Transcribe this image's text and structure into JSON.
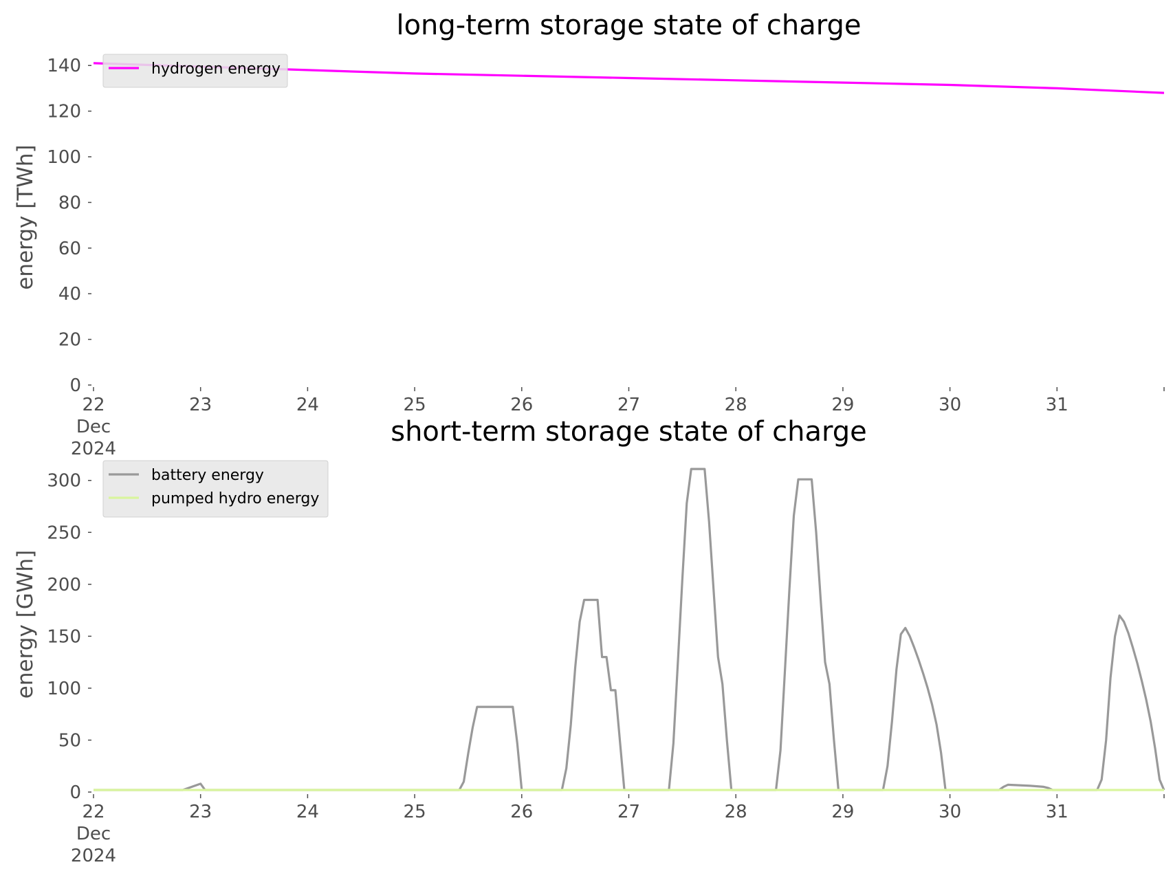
{
  "chart_data": [
    {
      "type": "line",
      "title": "long-term storage state of charge",
      "ylabel": "energy [TWh]",
      "xlabel": "",
      "x_ticks": [
        "22\nDec\n2024",
        "23",
        "24",
        "25",
        "26",
        "27",
        "28",
        "29",
        "30",
        "31"
      ],
      "xlim": [
        "2024-12-22",
        "2025-01-01"
      ],
      "ylim": [
        0,
        147
      ],
      "y_ticks": [
        0,
        20,
        40,
        60,
        80,
        100,
        120,
        140
      ],
      "grid": false,
      "legend_position": "top-left",
      "series": [
        {
          "name": "hydrogen energy",
          "color": "#ff00ff",
          "points": [
            [
              "2024-12-22 00:00",
              141
            ],
            [
              "2024-12-23 00:00",
              139.5
            ],
            [
              "2024-12-24 00:00",
              138
            ],
            [
              "2024-12-25 00:00",
              136.5
            ],
            [
              "2024-12-26 00:00",
              135.5
            ],
            [
              "2024-12-27 00:00",
              134.5
            ],
            [
              "2024-12-28 00:00",
              133.5
            ],
            [
              "2024-12-29 00:00",
              132.5
            ],
            [
              "2024-12-30 00:00",
              131.5
            ],
            [
              "2024-12-31 00:00",
              130
            ],
            [
              "2025-01-01 00:00",
              128
            ]
          ]
        }
      ]
    },
    {
      "type": "line",
      "title": "short-term storage state of charge",
      "ylabel": "energy [GWh]",
      "xlabel": "",
      "x_ticks": [
        "22\nDec\n2024",
        "23",
        "24",
        "25",
        "26",
        "27",
        "28",
        "29",
        "30",
        "31"
      ],
      "xlim": [
        "2024-12-22",
        "2025-01-01"
      ],
      "ylim": [
        0,
        323
      ],
      "y_ticks": [
        0,
        50,
        100,
        150,
        200,
        250,
        300
      ],
      "grid": false,
      "legend_position": "top-left",
      "series": [
        {
          "name": "battery energy",
          "color": "#999999",
          "points": [
            [
              "2024-12-22 00:00",
              2
            ],
            [
              "2024-12-22 20:00",
              2
            ],
            [
              "2024-12-23 00:00",
              8
            ],
            [
              "2024-12-23 01:00",
              2
            ],
            [
              "2024-12-25 10:00",
              2
            ],
            [
              "2024-12-25 11:00",
              10
            ],
            [
              "2024-12-25 12:00",
              37
            ],
            [
              "2024-12-25 13:00",
              62
            ],
            [
              "2024-12-25 14:00",
              82
            ],
            [
              "2024-12-25 22:00",
              82
            ],
            [
              "2024-12-25 23:00",
              47
            ],
            [
              "2024-12-26 00:00",
              2
            ],
            [
              "2024-12-26 09:00",
              2
            ],
            [
              "2024-12-26 10:00",
              23
            ],
            [
              "2024-12-26 11:00",
              65
            ],
            [
              "2024-12-26 12:00",
              120
            ],
            [
              "2024-12-26 13:00",
              164
            ],
            [
              "2024-12-26 14:00",
              185
            ],
            [
              "2024-12-26 17:00",
              185
            ],
            [
              "2024-12-26 18:00",
              130
            ],
            [
              "2024-12-26 19:00",
              130
            ],
            [
              "2024-12-26 20:00",
              98
            ],
            [
              "2024-12-26 21:00",
              98
            ],
            [
              "2024-12-26 22:00",
              50
            ],
            [
              "2024-12-26 23:00",
              2
            ],
            [
              "2024-12-27 09:00",
              2
            ],
            [
              "2024-12-27 10:00",
              47
            ],
            [
              "2024-12-27 11:00",
              125
            ],
            [
              "2024-12-27 12:00",
              205
            ],
            [
              "2024-12-27 13:00",
              278
            ],
            [
              "2024-12-27 14:00",
              311
            ],
            [
              "2024-12-27 17:00",
              311
            ],
            [
              "2024-12-27 18:00",
              260
            ],
            [
              "2024-12-27 19:00",
              195
            ],
            [
              "2024-12-27 20:00",
              130
            ],
            [
              "2024-12-27 21:00",
              104
            ],
            [
              "2024-12-27 22:00",
              50
            ],
            [
              "2024-12-27 23:00",
              2
            ],
            [
              "2024-12-28 09:00",
              2
            ],
            [
              "2024-12-28 10:00",
              40
            ],
            [
              "2024-12-28 11:00",
              117
            ],
            [
              "2024-12-28 12:00",
              195
            ],
            [
              "2024-12-28 13:00",
              266
            ],
            [
              "2024-12-28 14:00",
              301
            ],
            [
              "2024-12-28 17:00",
              301
            ],
            [
              "2024-12-28 18:00",
              250
            ],
            [
              "2024-12-28 19:00",
              186
            ],
            [
              "2024-12-28 20:00",
              125
            ],
            [
              "2024-12-28 21:00",
              104
            ],
            [
              "2024-12-28 22:00",
              50
            ],
            [
              "2024-12-28 23:00",
              2
            ],
            [
              "2024-12-29 09:00",
              2
            ],
            [
              "2024-12-29 10:00",
              25
            ],
            [
              "2024-12-29 11:00",
              68
            ],
            [
              "2024-12-29 12:00",
              118
            ],
            [
              "2024-12-29 13:00",
              152
            ],
            [
              "2024-12-29 14:00",
              158
            ],
            [
              "2024-12-29 15:00",
              150
            ],
            [
              "2024-12-29 16:00",
              139
            ],
            [
              "2024-12-29 17:00",
              127
            ],
            [
              "2024-12-29 18:00",
              114
            ],
            [
              "2024-12-29 19:00",
              100
            ],
            [
              "2024-12-29 20:00",
              84
            ],
            [
              "2024-12-29 21:00",
              65
            ],
            [
              "2024-12-29 22:00",
              38
            ],
            [
              "2024-12-29 23:00",
              2
            ],
            [
              "2024-12-30 11:00",
              2
            ],
            [
              "2024-12-30 12:00",
              5
            ],
            [
              "2024-12-30 13:00",
              7
            ],
            [
              "2024-12-30 18:00",
              6
            ],
            [
              "2024-12-30 21:00",
              5
            ],
            [
              "2024-12-30 22:00",
              4
            ],
            [
              "2024-12-30 23:00",
              2
            ],
            [
              "2024-12-31 09:00",
              2
            ],
            [
              "2024-12-31 10:00",
              12
            ],
            [
              "2024-12-31 11:00",
              50
            ],
            [
              "2024-12-31 12:00",
              110
            ],
            [
              "2024-12-31 13:00",
              150
            ],
            [
              "2024-12-31 14:00",
              170
            ],
            [
              "2024-12-31 15:00",
              164
            ],
            [
              "2024-12-31 16:00",
              153
            ],
            [
              "2024-12-31 17:00",
              139
            ],
            [
              "2024-12-31 18:00",
              124
            ],
            [
              "2024-12-31 19:00",
              107
            ],
            [
              "2024-12-31 20:00",
              89
            ],
            [
              "2024-12-31 21:00",
              68
            ],
            [
              "2024-12-31 22:00",
              42
            ],
            [
              "2024-12-31 23:00",
              12
            ],
            [
              "2024-12-31 23:59",
              2
            ]
          ]
        },
        {
          "name": "pumped hydro energy",
          "color": "#d9f59e",
          "points": [
            [
              "2024-12-22 00:00",
              2
            ],
            [
              "2025-01-01 00:00",
              2
            ]
          ]
        }
      ]
    }
  ]
}
